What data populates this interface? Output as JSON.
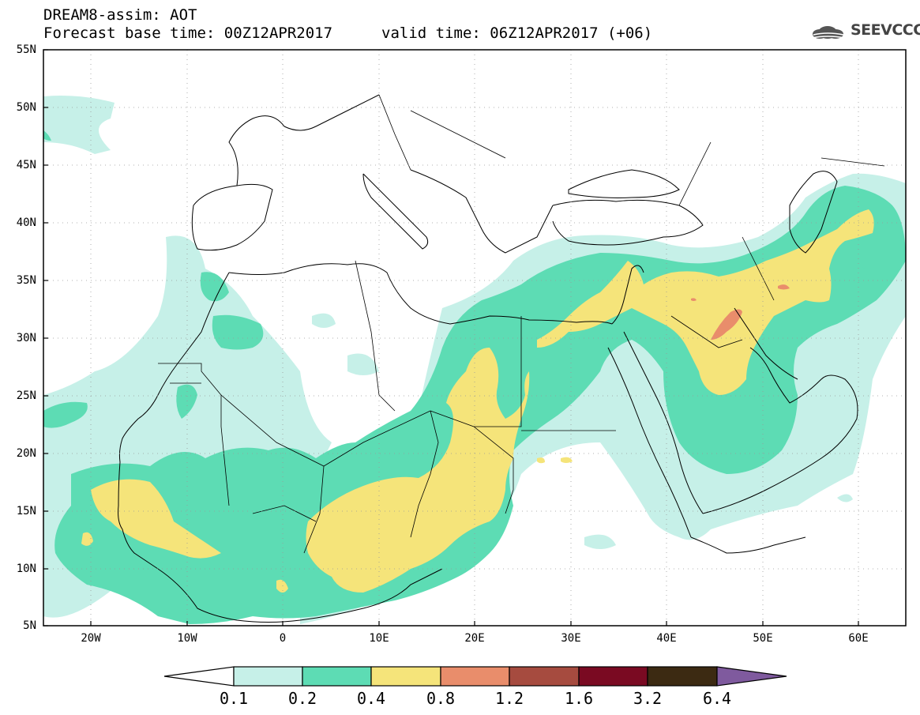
{
  "header": {
    "title_line1": "DREAM8-assim: AOT",
    "title_line2": "Forecast base time: 00Z12APR2017",
    "valid_time": "valid time: 06Z12APR2017 (+06)",
    "logo_text": "SEEVCCC",
    "logo_icon": "cloud-logo-icon"
  },
  "axes": {
    "lat_labels": [
      "55N",
      "50N",
      "45N",
      "40N",
      "35N",
      "30N",
      "25N",
      "20N",
      "15N",
      "10N",
      "5N"
    ],
    "lon_labels": [
      "20W",
      "10W",
      "0",
      "10E",
      "20E",
      "30E",
      "40E",
      "50E",
      "60E"
    ]
  },
  "colorbar": {
    "labels": [
      "0.1",
      "0.2",
      "0.4",
      "0.8",
      "1.2",
      "1.6",
      "3.2",
      "6.4"
    ],
    "colors": [
      "#ffffff",
      "#c6f0e8",
      "#5ddcb4",
      "#f5e47a",
      "#e98d6b",
      "#a64b3f",
      "#7a0a22",
      "#3c2a12",
      "#7f5a9e"
    ]
  },
  "map": {
    "title": "AOT",
    "level_colors": {
      "l1": "#c6f0e8",
      "l2": "#5ddcb4",
      "l3": "#f5e47a",
      "l4": "#e98d6b"
    }
  }
}
